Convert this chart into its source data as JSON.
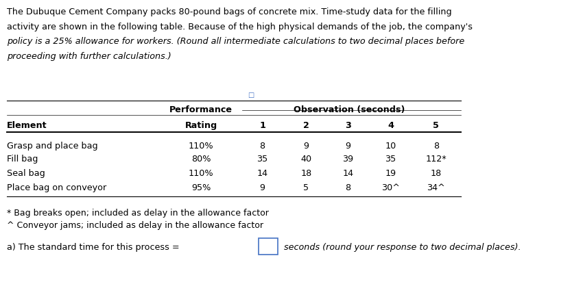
{
  "title_line1": "The Dubuque Cement Company packs 80-pound bags of concrete mix. Time-study data for the filling",
  "title_line2": "activity are shown in the following table. Because of the high physical demands of the job, the company's",
  "title_line3": "policy is a 25% allowance for workers. (Round all intermediate calculations to two decimal places before",
  "title_line4": "proceeding with further calculations.)",
  "header_row2": [
    "Element",
    "Rating",
    "1",
    "2",
    "3",
    "4",
    "5"
  ],
  "rows": [
    [
      "Grasp and place bag",
      "110%",
      "8",
      "9",
      "9",
      "10",
      "8"
    ],
    [
      "Fill bag",
      "80%",
      "35",
      "40",
      "39",
      "35",
      "112*"
    ],
    [
      "Seal bag",
      "110%",
      "14",
      "18",
      "14",
      "19",
      "18"
    ],
    [
      "Place bag on conveyor",
      "95%",
      "9",
      "5",
      "8",
      "30^",
      "34^"
    ]
  ],
  "footnote1": "* Bag breaks open; included as delay in the allowance factor",
  "footnote2": "^ Conveyor jams; included as delay in the allowance factor",
  "answer_label": "a) The standard time for this process =",
  "answer_suffix": "seconds (round your response to two decimal places).",
  "bg_color": "#ffffff",
  "text_color": "#000000",
  "box_color": "#4472C4",
  "icon_color": "#4472C4"
}
